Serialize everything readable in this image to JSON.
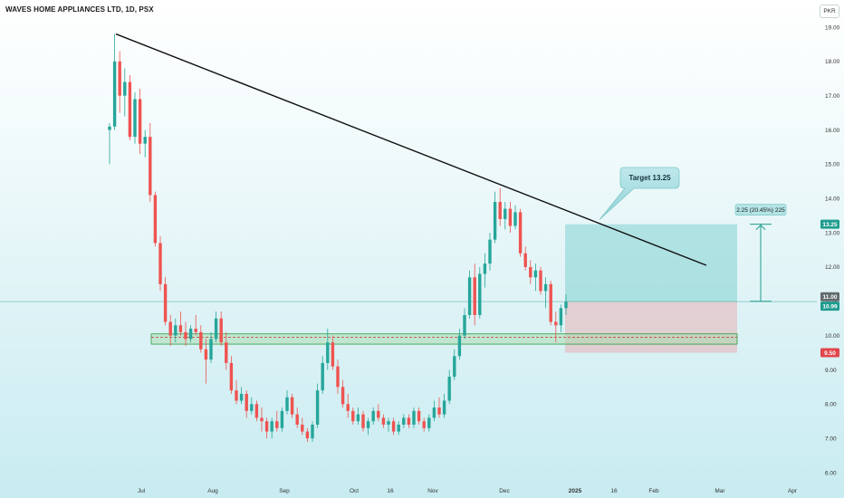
{
  "header": {
    "title": "WAVES HOME APPLIANCES LTD, 1D, PSX",
    "currency": "PKR"
  },
  "chart_data": {
    "type": "candlestick",
    "title": "WAVES HOME APPLIANCES LTD, 1D, PSX",
    "ylim": [
      5.7,
      19.3
    ],
    "y_ticks": [
      "19.00",
      "18.00",
      "17.00",
      "16.00",
      "15.00",
      "14.00",
      "13.00",
      "12.00",
      "11.00",
      "10.00",
      "9.00",
      "8.00",
      "7.00",
      "6.00"
    ],
    "x_ticks": [
      "Jul",
      "Aug",
      "Sep",
      "Oct",
      "16",
      "Nov",
      "Dec",
      "2025",
      "16",
      "Feb",
      "Mar",
      "Apr"
    ],
    "price_labels": [
      {
        "value": 13.25,
        "text": "13.25",
        "color": "#1e9c8e"
      },
      {
        "value": 11.0,
        "text": "11.00",
        "color": "#636b6e"
      },
      {
        "value": 10.99,
        "text": "10.99",
        "color": "#1e9c8e"
      },
      {
        "value": 9.5,
        "text": "9.50",
        "color": "#e0474c"
      }
    ],
    "annotations": {
      "target_label": "Target 13.25",
      "measure_label": "2.25 (20.45%) 225"
    },
    "trendline": {
      "start": {
        "date": "Jun 24",
        "price": 18.8
      },
      "end": {
        "date": "Feb 24",
        "price": 12.05
      }
    },
    "support_zone": {
      "top": 10.05,
      "bottom": 9.75,
      "mid": 9.95
    },
    "position": {
      "entry": 11.0,
      "target": 13.25,
      "stop": 9.5
    },
    "measure": {
      "from": 11.0,
      "to": 13.25
    },
    "current_price": 10.99,
    "candles": [
      [
        16.0,
        16.2,
        15.0,
        16.1
      ],
      [
        16.1,
        18.8,
        16.0,
        18.0
      ],
      [
        18.0,
        18.3,
        16.5,
        17.0
      ],
      [
        17.0,
        17.8,
        16.4,
        17.4
      ],
      [
        17.4,
        17.6,
        15.7,
        15.8
      ],
      [
        15.8,
        17.1,
        15.6,
        16.9
      ],
      [
        16.9,
        17.2,
        15.3,
        15.6
      ],
      [
        15.6,
        16.0,
        15.2,
        15.8
      ],
      [
        15.8,
        16.2,
        13.9,
        14.1
      ],
      [
        14.1,
        14.2,
        12.6,
        12.7
      ],
      [
        12.7,
        12.9,
        11.3,
        11.5
      ],
      [
        11.5,
        11.7,
        10.3,
        10.4
      ],
      [
        10.4,
        10.6,
        9.7,
        10.0
      ],
      [
        10.0,
        10.5,
        9.8,
        10.3
      ],
      [
        10.3,
        10.7,
        10.0,
        10.1
      ],
      [
        10.1,
        10.4,
        9.7,
        9.9
      ],
      [
        9.9,
        10.3,
        9.8,
        10.2
      ],
      [
        10.2,
        10.6,
        10.0,
        10.1
      ],
      [
        10.1,
        10.3,
        9.5,
        9.6
      ],
      [
        9.6,
        9.9,
        8.6,
        9.3
      ],
      [
        9.3,
        10.1,
        9.2,
        9.9
      ],
      [
        9.9,
        10.7,
        9.8,
        10.5
      ],
      [
        10.5,
        10.7,
        9.7,
        9.8
      ],
      [
        9.8,
        10.1,
        9.0,
        9.2
      ],
      [
        9.2,
        9.4,
        8.3,
        8.4
      ],
      [
        8.4,
        8.7,
        8.0,
        8.1
      ],
      [
        8.1,
        8.5,
        8.0,
        8.3
      ],
      [
        8.3,
        8.4,
        7.6,
        7.8
      ],
      [
        7.8,
        8.2,
        7.7,
        8.0
      ],
      [
        8.0,
        8.1,
        7.5,
        7.6
      ],
      [
        7.6,
        7.9,
        7.2,
        7.5
      ],
      [
        7.5,
        7.6,
        7.0,
        7.2
      ],
      [
        7.2,
        7.6,
        7.0,
        7.5
      ],
      [
        7.5,
        7.8,
        7.2,
        7.3
      ],
      [
        7.3,
        7.9,
        7.2,
        7.8
      ],
      [
        7.8,
        8.4,
        7.7,
        8.2
      ],
      [
        8.2,
        8.3,
        7.6,
        7.7
      ],
      [
        7.7,
        7.9,
        7.3,
        7.4
      ],
      [
        7.4,
        7.6,
        7.1,
        7.2
      ],
      [
        7.2,
        7.3,
        6.9,
        7.0
      ],
      [
        7.0,
        7.5,
        6.9,
        7.4
      ],
      [
        7.4,
        8.6,
        7.3,
        8.4
      ],
      [
        8.4,
        9.4,
        8.3,
        9.2
      ],
      [
        9.2,
        10.2,
        9.0,
        9.8
      ],
      [
        9.8,
        10.0,
        9.0,
        9.1
      ],
      [
        9.1,
        9.3,
        8.3,
        8.5
      ],
      [
        8.5,
        8.7,
        7.9,
        8.0
      ],
      [
        8.0,
        8.3,
        7.6,
        7.8
      ],
      [
        7.8,
        7.9,
        7.4,
        7.5
      ],
      [
        7.5,
        7.9,
        7.4,
        7.7
      ],
      [
        7.7,
        7.8,
        7.2,
        7.3
      ],
      [
        7.3,
        7.6,
        7.1,
        7.5
      ],
      [
        7.5,
        7.9,
        7.4,
        7.8
      ],
      [
        7.8,
        8.0,
        7.5,
        7.6
      ],
      [
        7.6,
        7.7,
        7.3,
        7.4
      ],
      [
        7.4,
        7.6,
        7.2,
        7.5
      ],
      [
        7.5,
        7.6,
        7.1,
        7.2
      ],
      [
        7.2,
        7.5,
        7.1,
        7.4
      ],
      [
        7.4,
        7.7,
        7.3,
        7.6
      ],
      [
        7.6,
        7.7,
        7.3,
        7.4
      ],
      [
        7.4,
        7.9,
        7.3,
        7.8
      ],
      [
        7.8,
        7.9,
        7.4,
        7.5
      ],
      [
        7.5,
        7.6,
        7.2,
        7.3
      ],
      [
        7.3,
        7.7,
        7.2,
        7.6
      ],
      [
        7.6,
        8.1,
        7.5,
        7.9
      ],
      [
        7.9,
        8.2,
        7.6,
        7.7
      ],
      [
        7.7,
        8.3,
        7.6,
        8.1
      ],
      [
        8.1,
        9.0,
        8.0,
        8.8
      ],
      [
        8.8,
        9.6,
        8.7,
        9.4
      ],
      [
        9.4,
        10.2,
        9.3,
        10.0
      ],
      [
        10.0,
        10.8,
        9.9,
        10.6
      ],
      [
        10.6,
        11.9,
        10.5,
        11.7
      ],
      [
        11.7,
        12.1,
        10.3,
        10.6
      ],
      [
        10.6,
        12.0,
        10.5,
        11.8
      ],
      [
        11.8,
        12.4,
        11.4,
        12.1
      ],
      [
        12.1,
        13.0,
        11.9,
        12.8
      ],
      [
        12.8,
        14.2,
        12.7,
        13.9
      ],
      [
        13.9,
        14.3,
        13.2,
        13.4
      ],
      [
        13.4,
        13.9,
        13.1,
        13.7
      ],
      [
        13.7,
        13.9,
        13.0,
        13.2
      ],
      [
        13.2,
        13.8,
        13.1,
        13.6
      ],
      [
        13.6,
        13.7,
        12.3,
        12.4
      ],
      [
        12.4,
        12.6,
        11.9,
        12.0
      ],
      [
        12.0,
        12.2,
        11.5,
        11.7
      ],
      [
        11.7,
        12.1,
        11.3,
        11.9
      ],
      [
        11.9,
        12.0,
        11.2,
        11.3
      ],
      [
        11.3,
        11.7,
        10.8,
        11.5
      ],
      [
        11.5,
        11.6,
        10.3,
        10.4
      ],
      [
        10.4,
        10.7,
        9.8,
        10.3
      ],
      [
        10.3,
        10.9,
        10.1,
        10.8
      ],
      [
        10.8,
        11.2,
        10.6,
        10.99
      ]
    ]
  }
}
